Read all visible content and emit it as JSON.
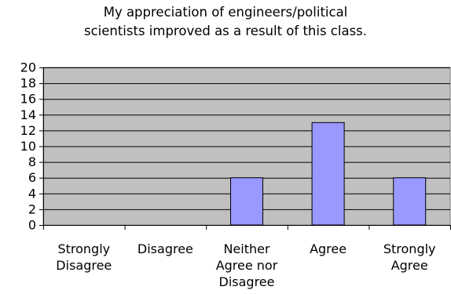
{
  "chart_data": {
    "type": "bar",
    "title_lines": [
      "My appreciation of engineers/political",
      "scientists improved as a result of this class."
    ],
    "categories": [
      "Strongly Disagree",
      "Disagree",
      "Neither Agree nor Disagree",
      "Agree",
      "Strongly Agree"
    ],
    "category_label_lines": [
      [
        "Strongly",
        "Disagree"
      ],
      [
        "Disagree"
      ],
      [
        "Neither",
        "Agree nor",
        "Disagree"
      ],
      [
        "Agree"
      ],
      [
        "Strongly",
        "Agree"
      ]
    ],
    "values": [
      0,
      0,
      6,
      13,
      6
    ],
    "ylim": [
      0,
      20
    ],
    "yticks": [
      0,
      2,
      4,
      6,
      8,
      10,
      12,
      14,
      16,
      18,
      20
    ],
    "grid": true,
    "legend": "none",
    "colors": {
      "plot_background": "#c0c0c0",
      "bar_fill": "#9999ff",
      "bar_stroke": "#000000",
      "grid": "#000000"
    }
  }
}
